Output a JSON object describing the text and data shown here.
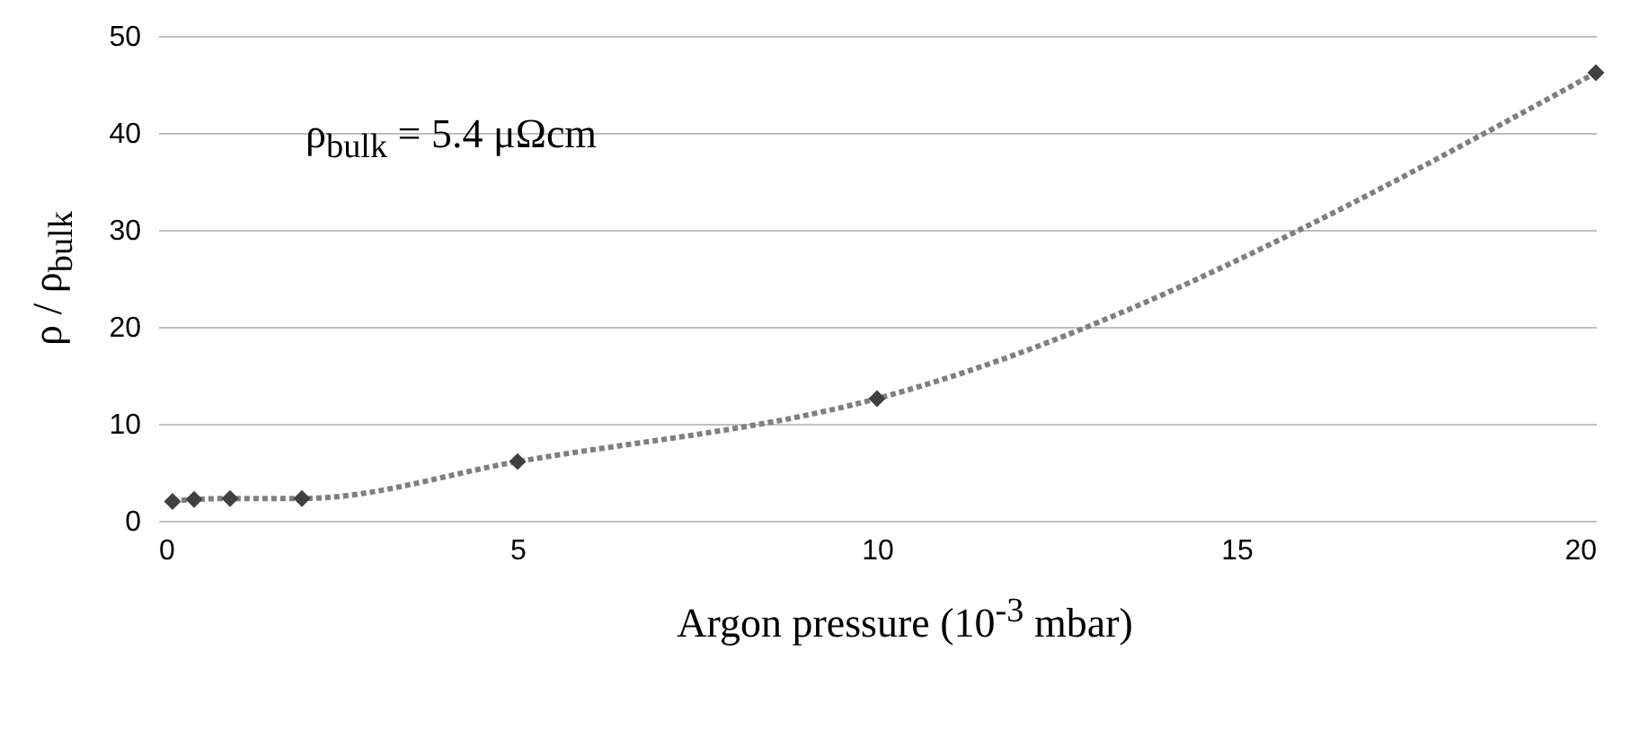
{
  "chart_data": {
    "type": "line",
    "xlabel": "Argon pressure  (10$^{-3}$ mbar)",
    "ylabel": "ρ / ρ$_{bulk}$",
    "annotations": [
      "ρ$_{bulk}$ = 5.4 μΩcm"
    ],
    "x": [
      0.2,
      0.5,
      1,
      2,
      5,
      10,
      20
    ],
    "series": [
      {
        "color": "#404040",
        "values": [
          2.0,
          2.2,
          2.3,
          2.3,
          6.1,
          12.6,
          46.2
        ]
      }
    ],
    "xlim": [
      0,
      20
    ],
    "xticks": [
      0,
      5,
      10,
      15,
      20
    ],
    "ylim": [
      0,
      50
    ],
    "yticks": [
      0,
      10,
      20,
      30,
      40,
      50
    ],
    "grid": "y",
    "marker": "diamond",
    "line_style": "dotted"
  }
}
